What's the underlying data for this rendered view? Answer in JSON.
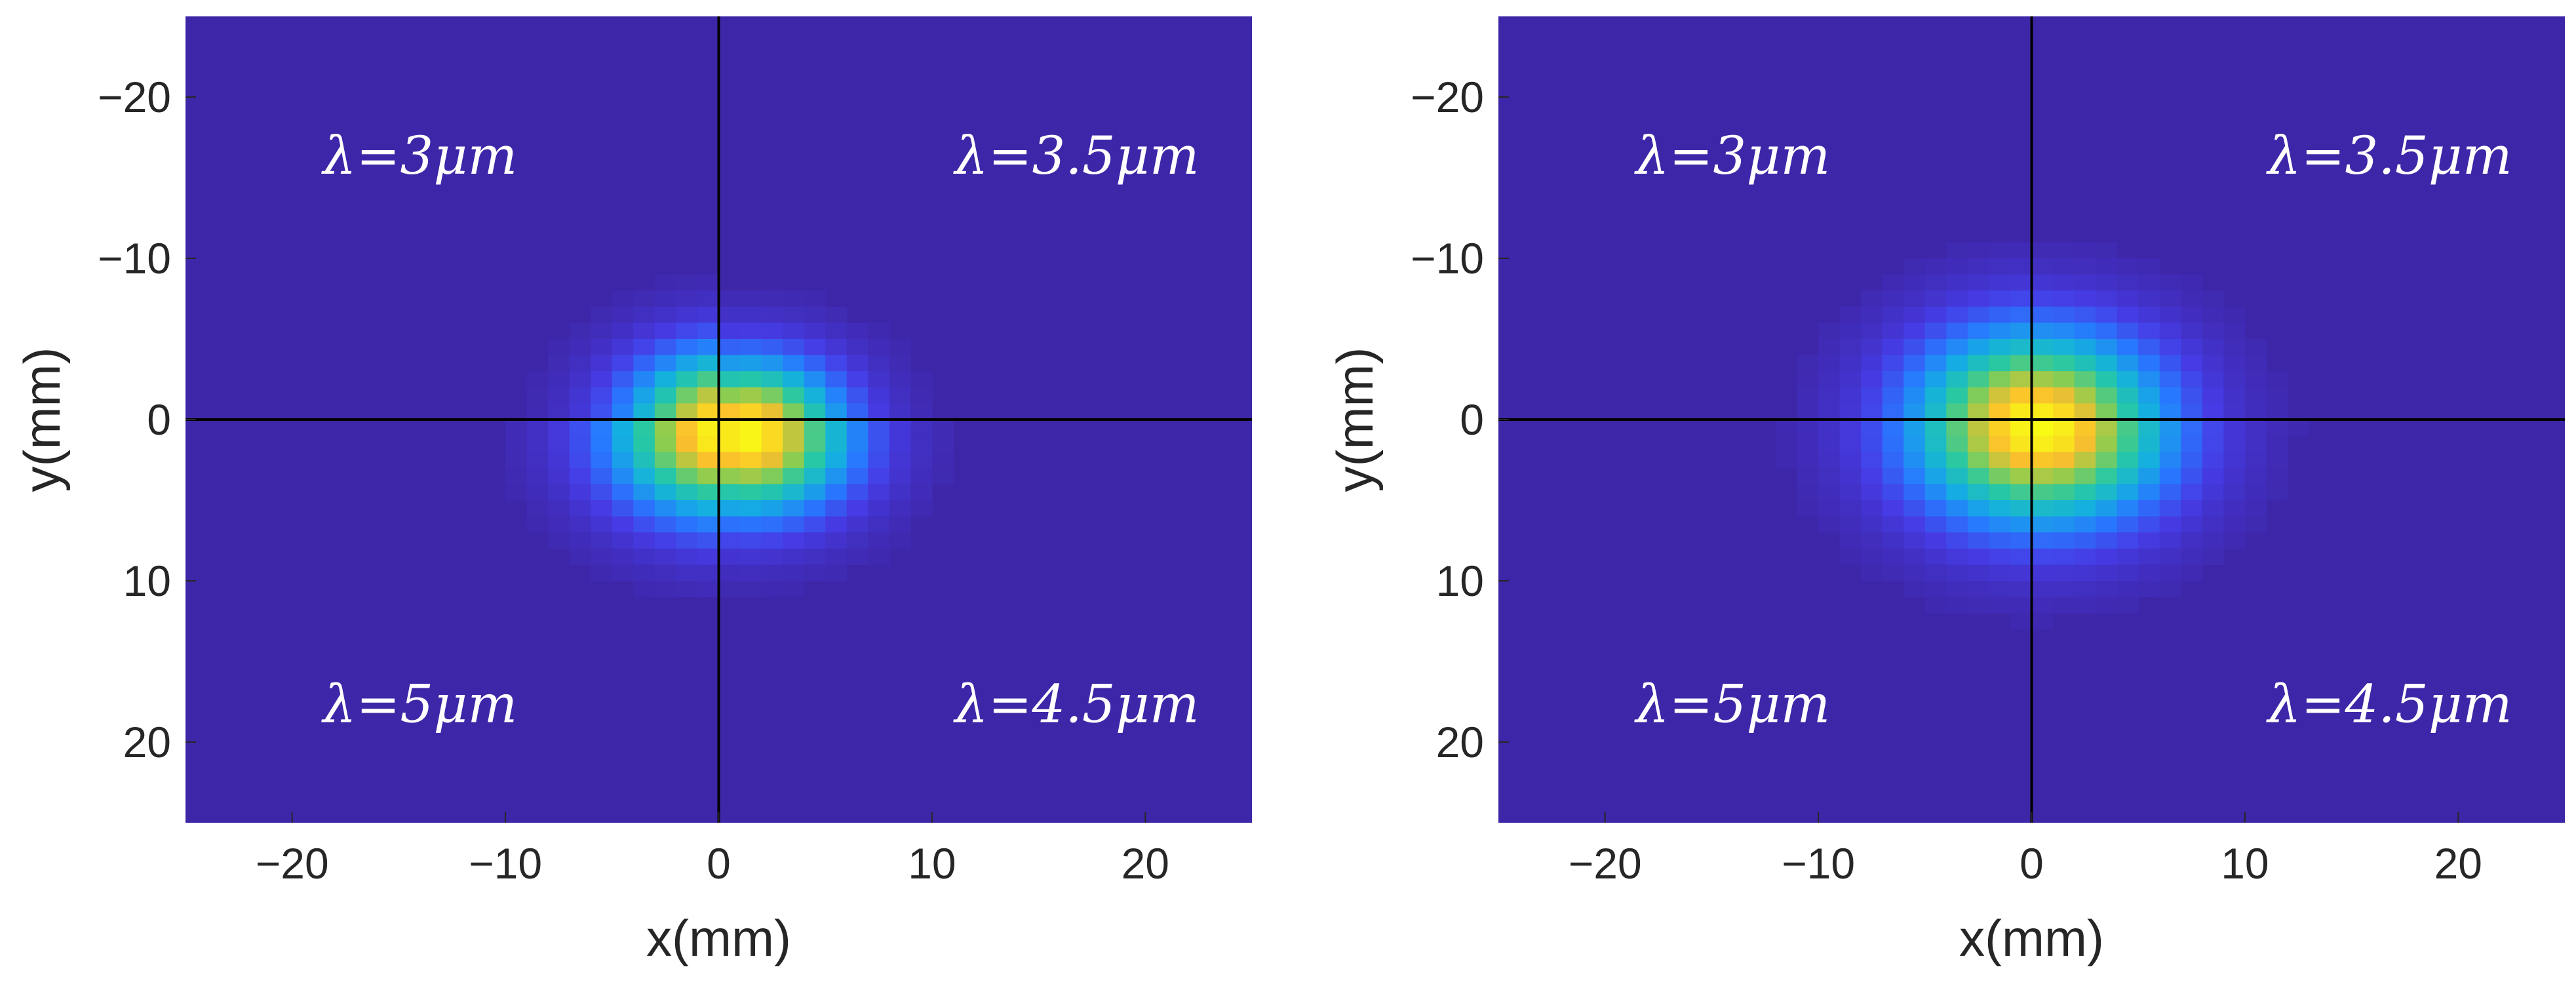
{
  "colors": {
    "background": "#3e26a8",
    "crosshair": "#000000",
    "text": "#262626",
    "annotation": "#ffffff",
    "colormap": "parula"
  },
  "chart_data": [
    {
      "type": "heatmap",
      "title": "",
      "xlabel": "x(mm)",
      "ylabel": "y(mm)",
      "xlim": [
        -25,
        25
      ],
      "ylim": [
        -25,
        25
      ],
      "y_axis_direction": "reversed",
      "xticks": [
        -20,
        -10,
        0,
        10,
        20
      ],
      "yticks": [
        -20,
        -10,
        0,
        10,
        20
      ],
      "xtick_labels": [
        "−20",
        "−10",
        "0",
        "10",
        "20"
      ],
      "ytick_labels": [
        "−20",
        "−10",
        "0",
        "10",
        "20"
      ],
      "crosshair": {
        "x": 0,
        "y": 0
      },
      "quadrant_labels": [
        {
          "position": "top-left",
          "text": "λ=3μm",
          "wavelength_um": 3
        },
        {
          "position": "top-right",
          "text": "λ=3.5μm",
          "wavelength_um": 3.5
        },
        {
          "position": "bottom-left",
          "text": "λ=5μm",
          "wavelength_um": 5
        },
        {
          "position": "bottom-right",
          "text": "λ=4.5μm",
          "wavelength_um": 4.5
        }
      ],
      "grid_resolution_mm": 1,
      "spot_peak_intensity": 1.0,
      "spots": [
        {
          "quadrant": "top-left",
          "center_x": 0.5,
          "center_y": 0.5,
          "sigma_mm": 3.4
        },
        {
          "quadrant": "top-right",
          "center_x": 1.3,
          "center_y": 0.8,
          "sigma_mm": 3.2
        },
        {
          "quadrant": "bottom-left",
          "center_x": 0.3,
          "center_y": 0.8,
          "sigma_mm": 3.8
        },
        {
          "quadrant": "bottom-right",
          "center_x": 1.3,
          "center_y": 1.0,
          "sigma_mm": 3.5
        }
      ]
    },
    {
      "type": "heatmap",
      "title": "",
      "xlabel": "x(mm)",
      "ylabel": "y(mm)",
      "xlim": [
        -25,
        25
      ],
      "ylim": [
        -25,
        25
      ],
      "y_axis_direction": "reversed",
      "xticks": [
        -20,
        -10,
        0,
        10,
        20
      ],
      "yticks": [
        -20,
        -10,
        0,
        10,
        20
      ],
      "xtick_labels": [
        "−20",
        "−10",
        "0",
        "10",
        "20"
      ],
      "ytick_labels": [
        "−20",
        "−10",
        "0",
        "10",
        "20"
      ],
      "crosshair": {
        "x": 0,
        "y": 0
      },
      "quadrant_labels": [
        {
          "position": "top-left",
          "text": "λ=3μm",
          "wavelength_um": 3
        },
        {
          "position": "top-right",
          "text": "λ=3.5μm",
          "wavelength_um": 3.5
        },
        {
          "position": "bottom-left",
          "text": "λ=5μm",
          "wavelength_um": 5
        },
        {
          "position": "bottom-right",
          "text": "λ=4.5μm",
          "wavelength_um": 4.5
        }
      ],
      "grid_resolution_mm": 1,
      "spot_peak_intensity": 1.0,
      "spots": [
        {
          "quadrant": "top-left",
          "center_x": 0.3,
          "center_y": 0.3,
          "sigma_mm": 4.2
        },
        {
          "quadrant": "top-right",
          "center_x": 0.3,
          "center_y": 0.5,
          "sigma_mm": 4.2
        },
        {
          "quadrant": "bottom-left",
          "center_x": 0.3,
          "center_y": 0.5,
          "sigma_mm": 4.3
        },
        {
          "quadrant": "bottom-right",
          "center_x": 0.5,
          "center_y": 0.5,
          "sigma_mm": 4.3
        }
      ]
    }
  ]
}
